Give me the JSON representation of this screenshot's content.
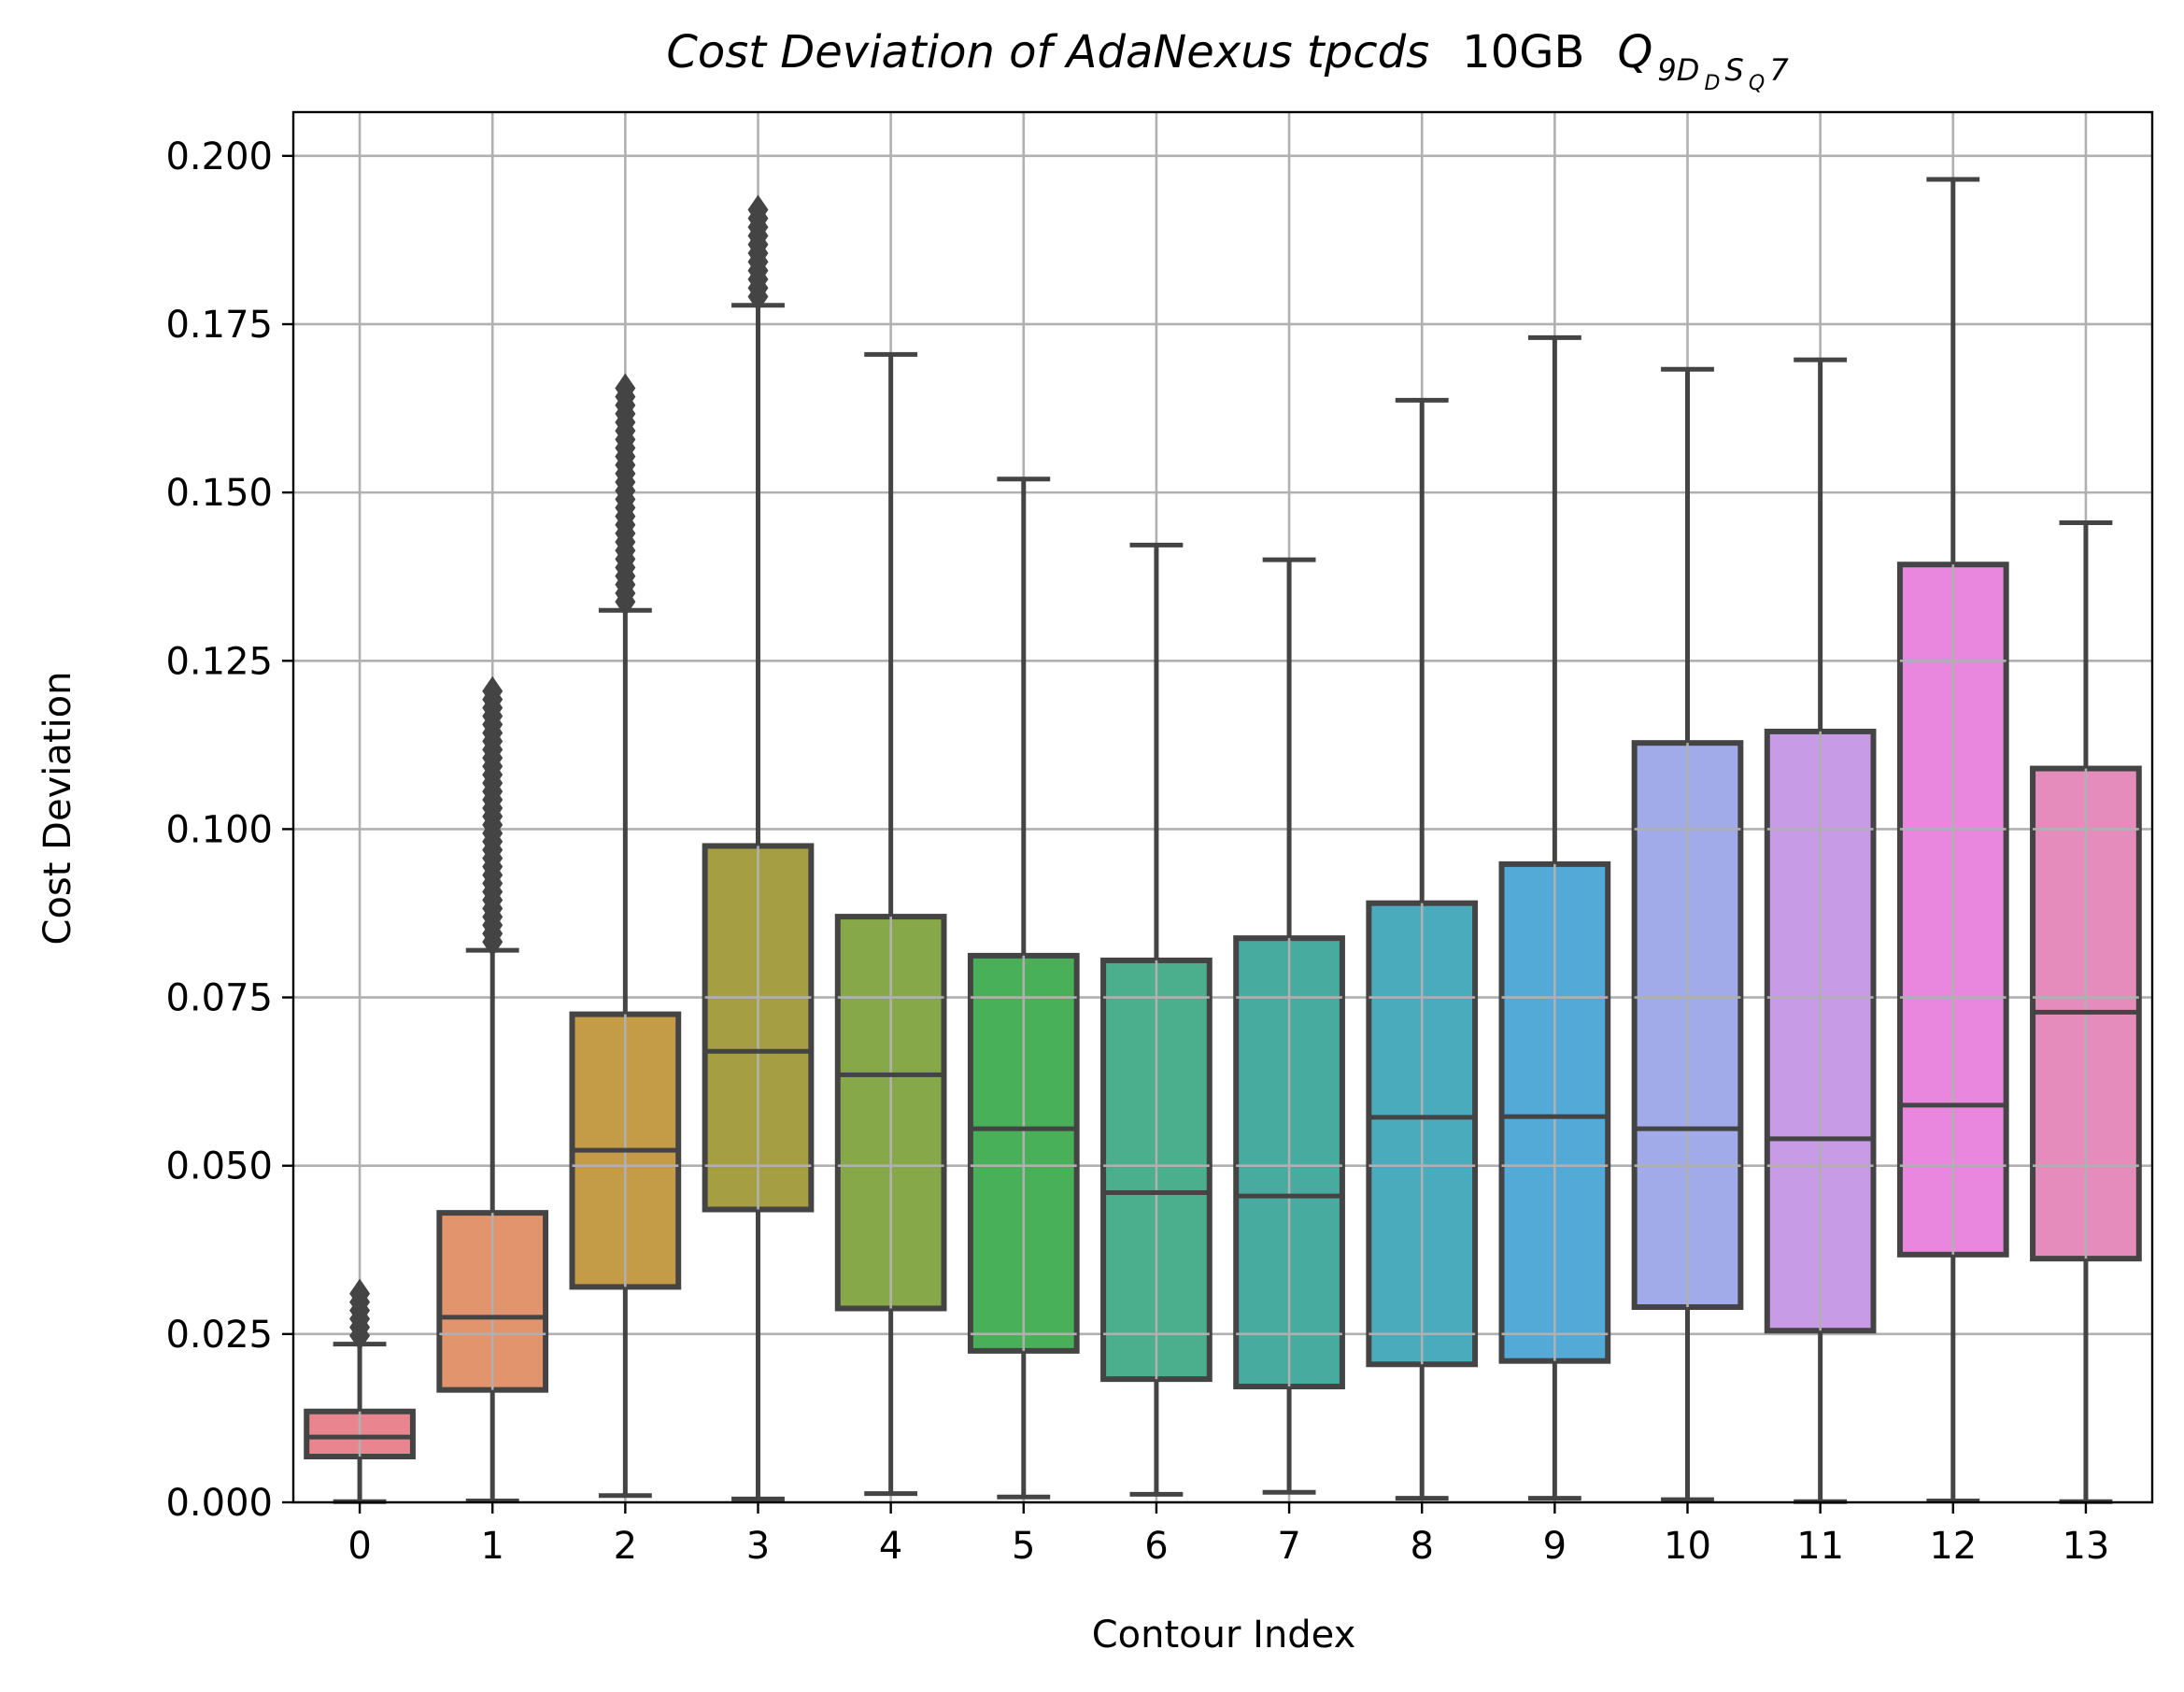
{
  "chart_data": {
    "type": "box",
    "title": {
      "italic_part": "Cost Deviation of AdaNexus tpcds",
      "size_part": "10GB",
      "query_main": "Q",
      "query_sub": "9D",
      "query_subsub1": "D",
      "query_sub_mid": "S",
      "query_subsub2": "Q",
      "query_tail": "7"
    },
    "xlabel": "Contour Index",
    "ylabel": "Cost Deviation",
    "ylim": [
      0,
      0.2065
    ],
    "yticks": [
      "0.000",
      "0.025",
      "0.050",
      "0.075",
      "0.100",
      "0.125",
      "0.150",
      "0.175",
      "0.200"
    ],
    "grid": true,
    "categories": [
      "0",
      "1",
      "2",
      "3",
      "4",
      "5",
      "6",
      "7",
      "8",
      "9",
      "10",
      "11",
      "12",
      "13"
    ],
    "boxes": [
      {
        "whisker_low": 0.0001,
        "q1": 0.0068,
        "median": 0.0097,
        "q3": 0.0135,
        "whisker_high": 0.0235,
        "outlier_range": [
          0.0235,
          0.031
        ],
        "color": "#e8858f"
      },
      {
        "whisker_low": 0.0002,
        "q1": 0.0167,
        "median": 0.0275,
        "q3": 0.043,
        "whisker_high": 0.082,
        "outlier_range": [
          0.082,
          0.1205
        ],
        "color": "#e2956c"
      },
      {
        "whisker_low": 0.001,
        "q1": 0.032,
        "median": 0.0523,
        "q3": 0.0725,
        "whisker_high": 0.1325,
        "outlier_range": [
          0.1325,
          0.1655
        ],
        "color": "#c49b47"
      },
      {
        "whisker_low": 0.0005,
        "q1": 0.0435,
        "median": 0.067,
        "q3": 0.0975,
        "whisker_high": 0.1778,
        "outlier_range": [
          0.1778,
          0.192
        ],
        "color": "#a59e42"
      },
      {
        "whisker_low": 0.0013,
        "q1": 0.0288,
        "median": 0.0635,
        "q3": 0.087,
        "whisker_high": 0.1705,
        "outlier_range": null,
        "color": "#86a848"
      },
      {
        "whisker_low": 0.0008,
        "q1": 0.0225,
        "median": 0.0555,
        "q3": 0.0812,
        "whisker_high": 0.152,
        "outlier_range": null,
        "color": "#48b059"
      },
      {
        "whisker_low": 0.0012,
        "q1": 0.0183,
        "median": 0.046,
        "q3": 0.0805,
        "whisker_high": 0.1422,
        "outlier_range": null,
        "color": "#4bae8c"
      },
      {
        "whisker_low": 0.0015,
        "q1": 0.0172,
        "median": 0.0455,
        "q3": 0.0838,
        "whisker_high": 0.14,
        "outlier_range": null,
        "color": "#48ab9f"
      },
      {
        "whisker_low": 0.0006,
        "q1": 0.0205,
        "median": 0.0572,
        "q3": 0.089,
        "whisker_high": 0.1637,
        "outlier_range": null,
        "color": "#4aabbc"
      },
      {
        "whisker_low": 0.0006,
        "q1": 0.021,
        "median": 0.0573,
        "q3": 0.0948,
        "whisker_high": 0.173,
        "outlier_range": null,
        "color": "#53aad7"
      },
      {
        "whisker_low": 0.0004,
        "q1": 0.029,
        "median": 0.0555,
        "q3": 0.1128,
        "whisker_high": 0.1683,
        "outlier_range": null,
        "color": "#a1abea"
      },
      {
        "whisker_low": 0.0001,
        "q1": 0.0255,
        "median": 0.054,
        "q3": 0.1145,
        "whisker_high": 0.1697,
        "outlier_range": null,
        "color": "#c89be7"
      },
      {
        "whisker_low": 0.0002,
        "q1": 0.0368,
        "median": 0.059,
        "q3": 0.1393,
        "whisker_high": 0.1965,
        "outlier_range": null,
        "color": "#e987df"
      },
      {
        "whisker_low": 0.0001,
        "q1": 0.0362,
        "median": 0.0728,
        "q3": 0.109,
        "whisker_high": 0.1455,
        "outlier_range": null,
        "color": "#e58cbc"
      }
    ]
  }
}
